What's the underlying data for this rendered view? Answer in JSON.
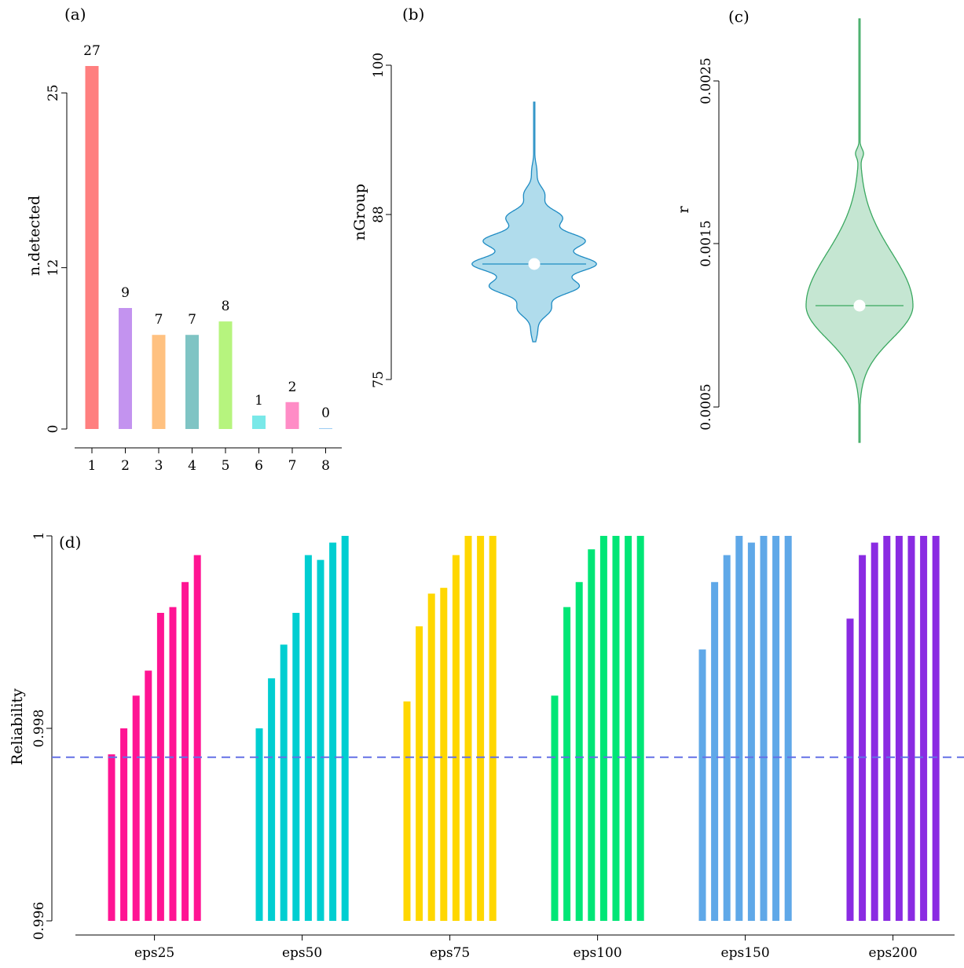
{
  "panels": {
    "a": {
      "tag": "(a)",
      "chart_data": {
        "type": "bar",
        "ylabel": "n.detected",
        "ylim": [
          0,
          27
        ],
        "yticks": [
          "0",
          "12",
          "25"
        ],
        "categories": [
          "1",
          "2",
          "3",
          "4",
          "5",
          "6",
          "7",
          "8"
        ],
        "values": [
          27,
          9,
          7,
          7,
          8,
          1,
          2,
          0
        ],
        "value_labels": [
          "27",
          "9",
          "7",
          "7",
          "8",
          "1",
          "2",
          "0"
        ],
        "label_colors": [
          "#ff1a1a",
          "#9b30e0",
          "#ff8c1a",
          "#1a8a8a",
          "#6fe020",
          "#1ad0d0",
          "#ff1a8c",
          "#4aa8e8"
        ],
        "bar_colors": [
          "#ff7f7f",
          "#c393ef",
          "#ffc180",
          "#7fc4c4",
          "#b6f47e",
          "#79e8e8",
          "#ff8cc6",
          "#9cccf3"
        ]
      }
    },
    "b": {
      "tag": "(b)",
      "chart_data": {
        "type": "violin",
        "ylabel": "nGroup",
        "yticks": [
          "75",
          "88",
          "100"
        ],
        "ylim": [
          75,
          100
        ],
        "median": 84,
        "fill_color": "#b0dcec",
        "line_color": "#1e8bc3"
      }
    },
    "c": {
      "tag": "(c)",
      "chart_data": {
        "type": "violin",
        "ylabel": "r",
        "yticks": [
          "0.0005",
          "0.0015",
          "0.0025"
        ],
        "ylim": [
          0.0005,
          0.0025
        ],
        "median": 0.0011,
        "fill_color": "#c5e6d2",
        "line_color": "#3aa860"
      }
    },
    "d": {
      "tag": "(d)",
      "chart_data": {
        "type": "bar",
        "ylabel": "Reliability",
        "ylim": [
          0.996,
          1.0
        ],
        "yticks": [
          "0.996",
          "0.998",
          "1"
        ],
        "reference_line": 0.9977,
        "reference_color": "#6470e6",
        "groups": [
          {
            "name": "eps25",
            "color": "#ff1493",
            "values": [
              0.99773,
              0.998,
              0.99834,
              0.9986,
              0.9992,
              0.99926,
              0.99952,
              0.9998
            ]
          },
          {
            "name": "eps50",
            "color": "#00ced1",
            "values": [
              0.998,
              0.99852,
              0.99887,
              0.9992,
              0.9998,
              0.99975,
              0.99993,
              1.0
            ]
          },
          {
            "name": "eps75",
            "color": "#ffd700",
            "values": [
              0.99828,
              0.99906,
              0.9994,
              0.99946,
              0.9998,
              1.0,
              1.0,
              1.0
            ]
          },
          {
            "name": "eps100",
            "color": "#00e676",
            "values": [
              0.99834,
              0.99926,
              0.99952,
              0.99986,
              1.0,
              1.0,
              1.0,
              1.0
            ]
          },
          {
            "name": "eps150",
            "color": "#5fa8e8",
            "values": [
              0.99882,
              0.99952,
              0.9998,
              1.0,
              0.99993,
              1.0,
              1.0,
              1.0
            ]
          },
          {
            "name": "eps200",
            "color": "#8a2be2",
            "values": [
              0.99914,
              0.9998,
              0.99993,
              1.0,
              1.0,
              1.0,
              1.0,
              1.0
            ]
          }
        ]
      }
    }
  }
}
